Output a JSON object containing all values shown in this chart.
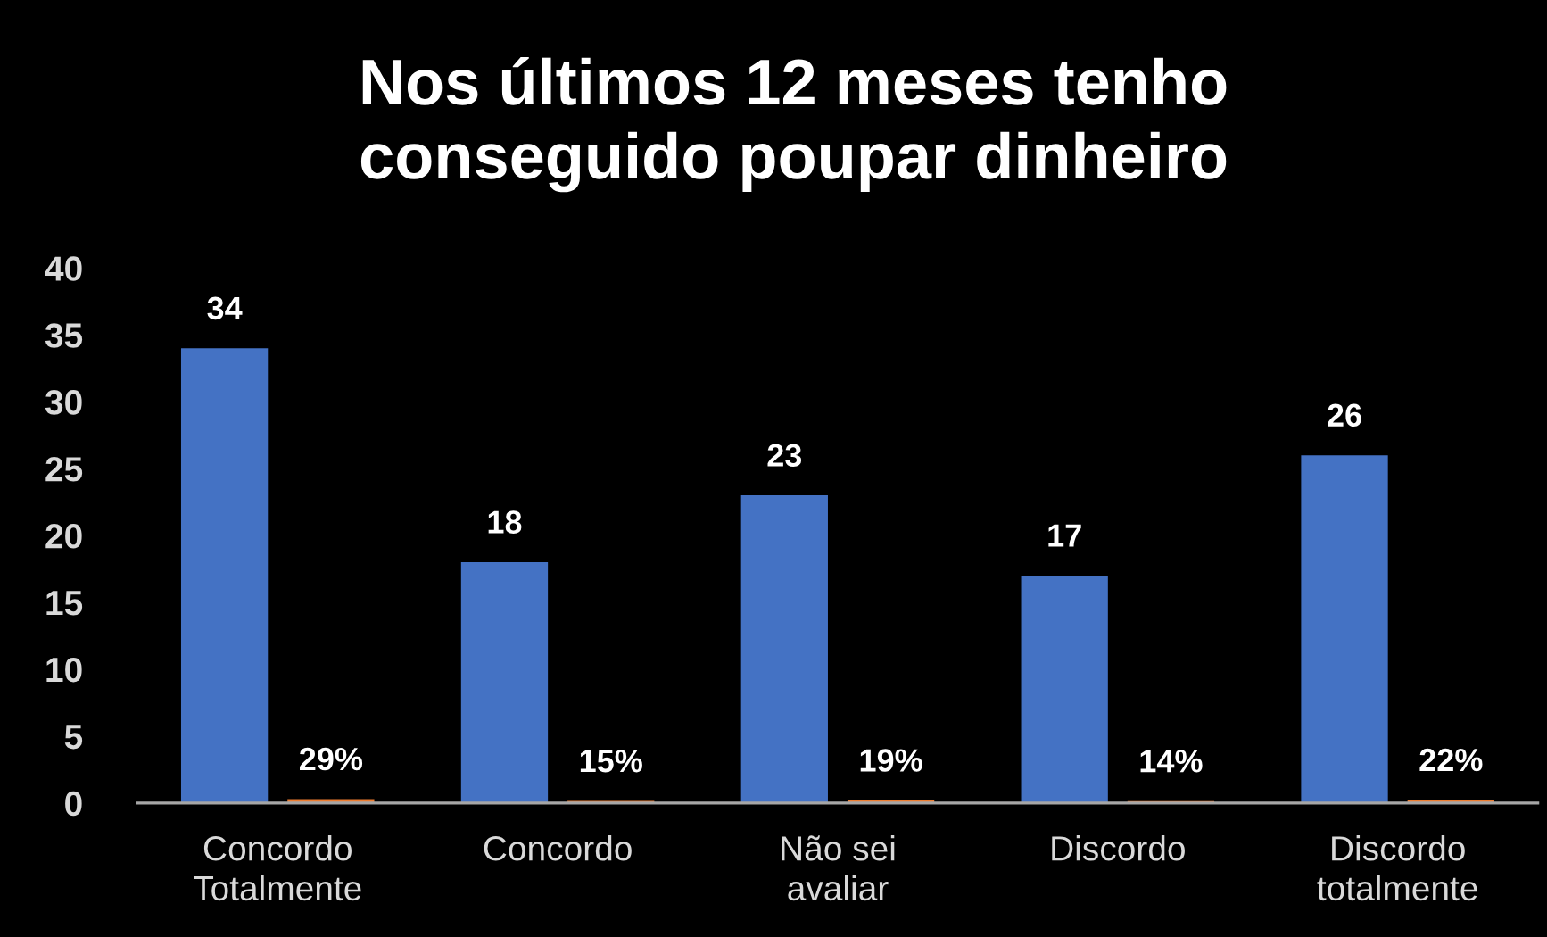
{
  "chart_data": {
    "type": "bar",
    "title": "Nos últimos 12 meses tenho\nconseguido poupar dinheiro",
    "categories": [
      "Concordo\nTotalmente",
      "Concordo",
      "Não sei\navaliar",
      "Discordo",
      "Discordo\ntotalmente"
    ],
    "series": [
      {
        "color": "#4472c4",
        "values": [
          34,
          18,
          23,
          17,
          26
        ],
        "value_labels": [
          "34",
          "18",
          "23",
          "17",
          "26"
        ]
      },
      {
        "color": "#ed7d31",
        "values": [
          0.29,
          0.15,
          0.19,
          0.14,
          0.22
        ],
        "value_labels": [
          "29%",
          "15%",
          "19%",
          "14%",
          "22%"
        ]
      }
    ],
    "ylim": [
      0,
      40
    ],
    "yticks": [
      0,
      5,
      10,
      15,
      20,
      25,
      30,
      35,
      40
    ]
  }
}
